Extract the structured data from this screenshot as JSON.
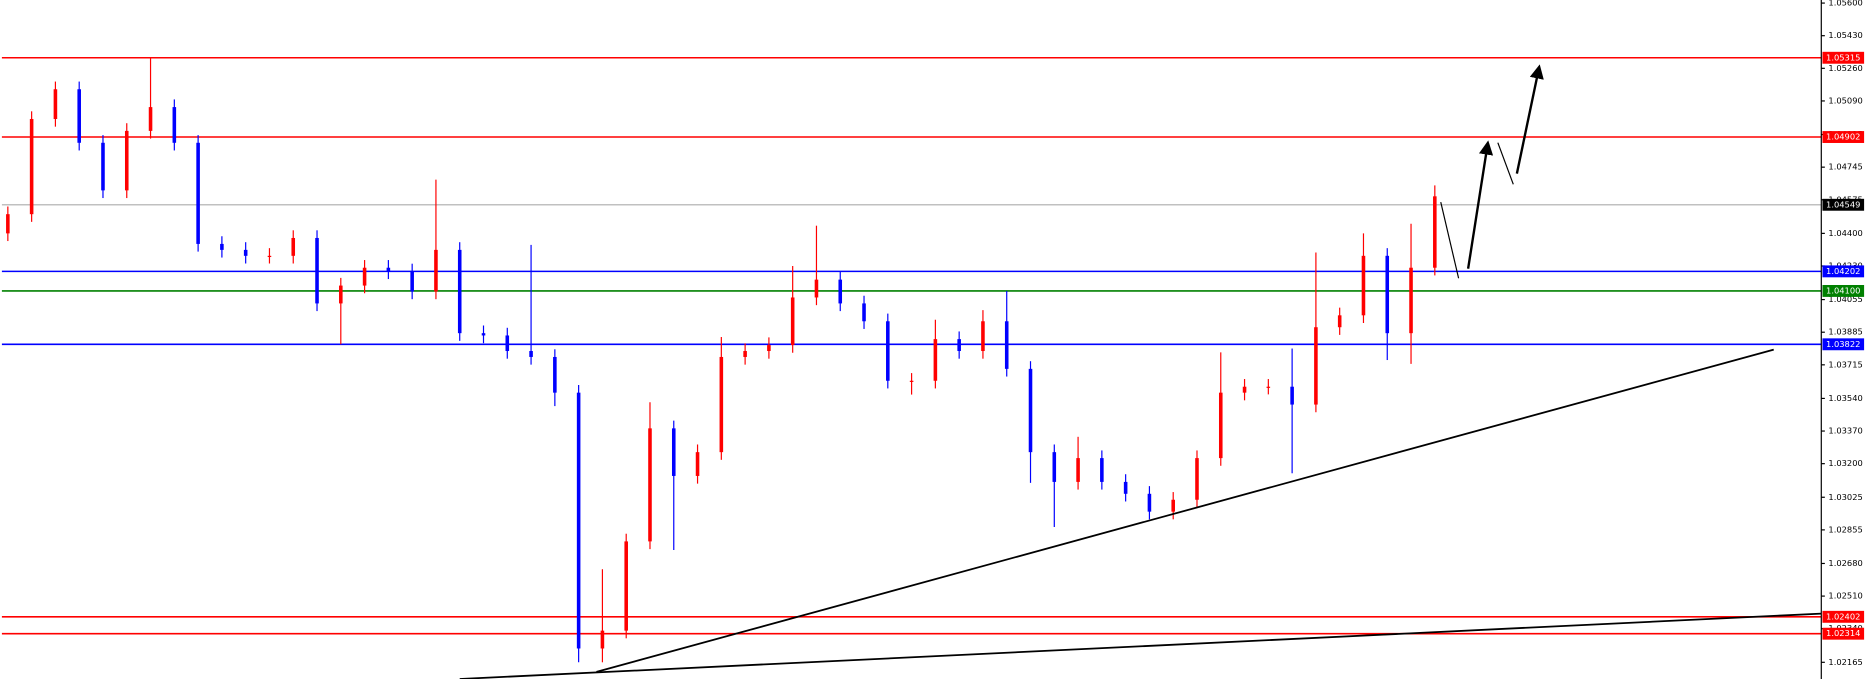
{
  "chart_data": {
    "type": "candlestick",
    "up_color": "#ff0000",
    "down_color": "#0000ff",
    "open": [
      1.044,
      1.045,
      1.04996,
      1.05151,
      1.04872,
      1.04624,
      1.04934,
      1.05058,
      1.04872,
      1.04345,
      1.04314,
      1.04283,
      1.04283,
      1.04376,
      1.04035,
      1.04128,
      1.04221,
      1.04202,
      1.04097,
      1.04314,
      1.0388,
      1.03868,
      1.03787,
      1.03756,
      1.0357,
      1.02237,
      1.0233,
      1.02795,
      1.03384,
      1.03136,
      1.0326,
      1.03756,
      1.03787,
      1.03818,
      1.04066,
      1.04159,
      1.04035,
      1.03942,
      1.03632,
      1.03632,
      1.03849,
      1.03787,
      1.03942,
      1.03694,
      1.0326,
      1.03105,
      1.03229,
      1.03105,
      1.03043,
      1.0295,
      1.03012,
      1.03229,
      1.0357,
      1.03601,
      1.03601,
      1.03508,
      1.03911,
      1.03973,
      1.04283,
      1.0388,
      1.04221
    ],
    "high": [
      1.0454,
      1.05036,
      1.05191,
      1.05191,
      1.04912,
      1.04974,
      1.05315,
      1.05098,
      1.04912,
      1.04385,
      1.04354,
      1.04323,
      1.04416,
      1.04416,
      1.04168,
      1.04261,
      1.04261,
      1.04242,
      1.0468,
      1.04354,
      1.0392,
      1.03908,
      1.0434,
      1.03796,
      1.0361,
      1.0265,
      1.02835,
      1.0352,
      1.03424,
      1.033,
      1.0386,
      1.03827,
      1.03858,
      1.0423,
      1.0444,
      1.04199,
      1.04075,
      1.03982,
      1.03672,
      1.0395,
      1.03889,
      1.04,
      1.041,
      1.03734,
      1.033,
      1.0334,
      1.03269,
      1.03145,
      1.03083,
      1.03052,
      1.03269,
      1.0378,
      1.03641,
      1.03641,
      1.038,
      1.043,
      1.04013,
      1.044,
      1.04323,
      1.0445,
      1.0465
    ],
    "low": [
      1.0436,
      1.0446,
      1.04956,
      1.04832,
      1.04584,
      1.04584,
      1.04894,
      1.04832,
      1.04305,
      1.04274,
      1.04243,
      1.04243,
      1.04243,
      1.03995,
      1.03822,
      1.04088,
      1.04162,
      1.04057,
      1.04057,
      1.0384,
      1.03828,
      1.03747,
      1.03716,
      1.035,
      1.02165,
      1.02165,
      1.0229,
      1.02755,
      1.0275,
      1.03096,
      1.0322,
      1.03716,
      1.03747,
      1.03778,
      1.04026,
      1.03995,
      1.03902,
      1.03592,
      1.0356,
      1.03592,
      1.03747,
      1.03747,
      1.03654,
      1.031,
      1.0287,
      1.03065,
      1.03065,
      1.03003,
      1.0291,
      1.0291,
      1.02972,
      1.03189,
      1.0353,
      1.03561,
      1.0315,
      1.03468,
      1.03871,
      1.03933,
      1.0374,
      1.0372,
      1.04181
    ],
    "close": [
      1.045,
      1.04996,
      1.05151,
      1.04872,
      1.04624,
      1.04934,
      1.05058,
      1.04872,
      1.04345,
      1.04314,
      1.04283,
      1.04283,
      1.04376,
      1.04035,
      1.04128,
      1.04221,
      1.04202,
      1.04097,
      1.04314,
      1.0388,
      1.03868,
      1.03787,
      1.03756,
      1.0357,
      1.02237,
      1.0233,
      1.02795,
      1.03384,
      1.03136,
      1.0326,
      1.03756,
      1.03787,
      1.03818,
      1.04066,
      1.04159,
      1.04035,
      1.03942,
      1.03632,
      1.03632,
      1.03849,
      1.03787,
      1.03942,
      1.03694,
      1.0326,
      1.03105,
      1.03229,
      1.03105,
      1.03043,
      1.0295,
      1.03012,
      1.03229,
      1.0357,
      1.03601,
      1.03601,
      1.03508,
      1.03911,
      1.03973,
      1.04283,
      1.0388,
      1.04221,
      1.04593
    ],
    "ylim": [
      1.02078,
      1.05616
    ],
    "yticks": [
      {
        "value": 1.056,
        "label": "1.05600"
      },
      {
        "value": 1.0543,
        "label": "1.05430"
      },
      {
        "value": 1.0526,
        "label": "1.05260"
      },
      {
        "value": 1.0509,
        "label": "1.05090"
      },
      1.04915,
      1.04745,
      1.04575,
      {
        "value": 1.044,
        "label": "1.04400"
      },
      {
        "value": 1.0423,
        "label": "1.04230"
      },
      1.04055,
      1.03885,
      1.03715,
      {
        "value": 1.0354,
        "label": "1.03540"
      },
      {
        "value": 1.0337,
        "label": "1.03370"
      },
      {
        "value": 1.032,
        "label": "1.03200"
      },
      1.03025,
      1.02855,
      {
        "value": 1.0268,
        "label": "1.02680"
      },
      {
        "value": 1.0251,
        "label": "1.02510"
      },
      {
        "value": 1.0234,
        "label": "1.02340"
      },
      1.02165
    ],
    "levels": [
      {
        "value": 1.05315,
        "color": "#ff0000"
      },
      {
        "value": 1.04902,
        "color": "#ff0000"
      },
      {
        "value": 1.04549,
        "color": "#c0c0c0",
        "label_color": "#000000"
      },
      {
        "value": 1.04202,
        "color": "#0000ff"
      },
      {
        "value": 1.041,
        "label": "1.04100",
        "color": "#008000"
      },
      {
        "value": 1.03822,
        "color": "#0000ff"
      },
      {
        "value": 1.02402,
        "color": "#ff0000"
      },
      {
        "value": 1.02314,
        "color": "#ff0000"
      }
    ]
  }
}
